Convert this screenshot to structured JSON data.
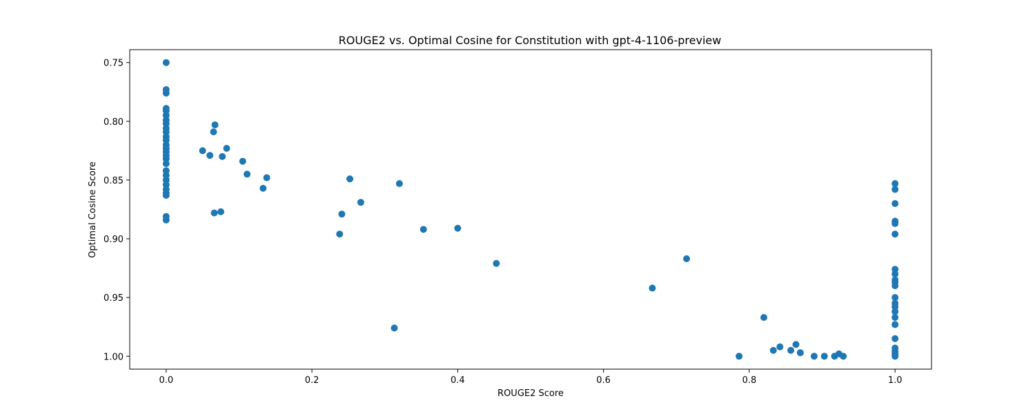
{
  "chart_data": {
    "type": "scatter",
    "title": "ROUGE2 vs. Optimal Cosine for Constitution with gpt-4-1106-preview",
    "xlabel": "ROUGE2 Score",
    "ylabel": "Optimal Cosine Score",
    "xlim": [
      -0.05,
      1.05
    ],
    "ylim": [
      1.011,
      0.739
    ],
    "y_inverted": true,
    "grid": false,
    "marker_color": "#1f77b4",
    "x_ticks": [
      0.0,
      0.2,
      0.4,
      0.6,
      0.8,
      1.0
    ],
    "x_tick_labels": [
      "0.0",
      "0.2",
      "0.4",
      "0.6",
      "0.8",
      "1.0"
    ],
    "y_ticks": [
      0.75,
      0.8,
      0.85,
      0.9,
      0.95,
      1.0
    ],
    "y_tick_labels": [
      "0.75",
      "0.80",
      "0.85",
      "0.90",
      "0.95",
      "1.00"
    ],
    "points": [
      [
        0,
        0.75
      ],
      [
        0,
        0.773
      ],
      [
        0,
        0.776
      ],
      [
        0,
        0.789
      ],
      [
        0,
        0.791
      ],
      [
        0,
        0.795
      ],
      [
        0,
        0.799
      ],
      [
        0,
        0.802
      ],
      [
        0,
        0.806
      ],
      [
        0,
        0.809
      ],
      [
        0,
        0.813
      ],
      [
        0,
        0.816
      ],
      [
        0,
        0.82
      ],
      [
        0,
        0.823
      ],
      [
        0,
        0.826
      ],
      [
        0,
        0.829
      ],
      [
        0,
        0.832
      ],
      [
        0,
        0.836
      ],
      [
        0,
        0.842
      ],
      [
        0,
        0.846
      ],
      [
        0,
        0.85
      ],
      [
        0,
        0.854
      ],
      [
        0,
        0.858
      ],
      [
        0,
        0.861
      ],
      [
        0,
        0.863
      ],
      [
        0,
        0.881
      ],
      [
        0,
        0.884
      ],
      [
        0.05,
        0.825
      ],
      [
        0.06,
        0.829
      ],
      [
        0.065,
        0.809
      ],
      [
        0.067,
        0.803
      ],
      [
        0.066,
        0.878
      ],
      [
        0.075,
        0.877
      ],
      [
        0.077,
        0.83
      ],
      [
        0.083,
        0.823
      ],
      [
        0.105,
        0.834
      ],
      [
        0.111,
        0.845
      ],
      [
        0.133,
        0.857
      ],
      [
        0.138,
        0.848
      ],
      [
        0.238,
        0.896
      ],
      [
        0.241,
        0.879
      ],
      [
        0.252,
        0.849
      ],
      [
        0.267,
        0.869
      ],
      [
        0.313,
        0.976
      ],
      [
        0.32,
        0.853
      ],
      [
        0.353,
        0.892
      ],
      [
        0.4,
        0.891
      ],
      [
        0.453,
        0.921
      ],
      [
        0.667,
        0.942
      ],
      [
        0.714,
        0.917
      ],
      [
        0.786,
        1.0
      ],
      [
        0.82,
        0.967
      ],
      [
        0.833,
        0.995
      ],
      [
        0.842,
        0.992
      ],
      [
        0.857,
        0.995
      ],
      [
        0.864,
        0.99
      ],
      [
        0.87,
        0.997
      ],
      [
        0.889,
        1.0
      ],
      [
        0.903,
        1.0
      ],
      [
        0.917,
        1.0
      ],
      [
        0.923,
        0.998
      ],
      [
        0.929,
        1.0
      ],
      [
        1,
        0.853
      ],
      [
        1,
        0.858
      ],
      [
        1,
        0.87
      ],
      [
        1,
        0.885
      ],
      [
        1,
        0.887
      ],
      [
        1,
        0.896
      ],
      [
        1,
        0.926
      ],
      [
        1,
        0.93
      ],
      [
        1,
        0.935
      ],
      [
        1,
        0.937
      ],
      [
        1,
        0.94
      ],
      [
        1,
        0.95
      ],
      [
        1,
        0.955
      ],
      [
        1,
        0.958
      ],
      [
        1,
        0.962
      ],
      [
        1,
        0.967
      ],
      [
        1,
        0.973
      ],
      [
        1,
        0.985
      ],
      [
        1,
        0.993
      ],
      [
        1,
        0.996
      ],
      [
        1,
        0.998
      ],
      [
        1,
        1.0
      ]
    ]
  }
}
